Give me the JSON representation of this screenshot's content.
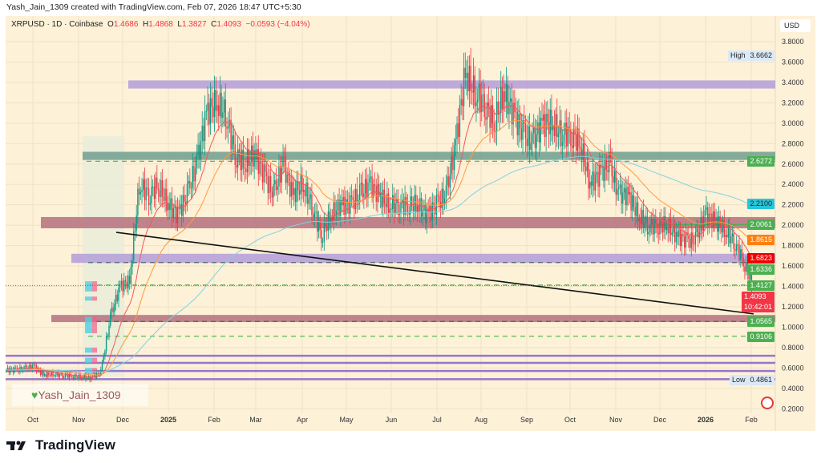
{
  "header": {
    "credit": "Yash_Jain_1309 created with TradingView.com, Feb 07, 2026 18:47 UTC+5:30"
  },
  "legend": {
    "symbol": "XRPUSD · 1D · Coinbase",
    "o_label": "O",
    "o": "1.4686",
    "h_label": "H",
    "h": "1.4868",
    "l_label": "L",
    "l": "1.3827",
    "c_label": "C",
    "c": "1.4093",
    "change": "−0.0593 (−4.04%)"
  },
  "axis": {
    "currency": "USD",
    "ticks": [
      "3.8000",
      "3.6000",
      "3.4000",
      "3.2000",
      "3.0000",
      "2.8000",
      "2.6000",
      "2.4000",
      "2.2000",
      "2.0000",
      "1.8000",
      "1.6000",
      "1.4000",
      "1.2000",
      "1.0000",
      "0.8000",
      "0.6000",
      "0.4000",
      "0.2000"
    ],
    "x_labels": [
      "Oct",
      "Nov",
      "Dec",
      "2025",
      "Feb",
      "Mar",
      "Apr",
      "May",
      "Jun",
      "Jul",
      "Aug",
      "Sep",
      "Oct",
      "Nov",
      "Dec",
      "2026",
      "Feb"
    ]
  },
  "badges": [
    {
      "label": "High",
      "value": "3.6662",
      "price": 3.6662,
      "color": "#dbe9f7",
      "text": "#222"
    },
    {
      "value": "2.6272",
      "price": 2.6272,
      "color": "#4caf50",
      "text": "#fff"
    },
    {
      "value": "2.2100",
      "price": 2.21,
      "color": "#26c6da",
      "text": "#222"
    },
    {
      "value": "2.0061",
      "price": 2.0061,
      "color": "#4caf50",
      "text": "#fff"
    },
    {
      "value": "1.8615",
      "price": 1.8615,
      "color": "#ff7f0e",
      "text": "#fff"
    },
    {
      "value": "1.6823",
      "price": 1.6823,
      "color": "#f00000",
      "text": "#fff"
    },
    {
      "value": "1.6336",
      "price": 1.6336,
      "color": "#4caf50",
      "text": "#fff"
    },
    {
      "value": "1.4127",
      "price": 1.4127,
      "color": "#4caf50",
      "text": "#fff"
    },
    {
      "value": "1.4093",
      "sub": "10:42:01",
      "price": 1.4093,
      "color": "#f23645",
      "text": "#fff"
    },
    {
      "value": "1.0565",
      "price": 1.0565,
      "color": "#4caf50",
      "text": "#fff"
    },
    {
      "value": "0.9106",
      "price": 0.9106,
      "color": "#4caf50",
      "text": "#fff"
    },
    {
      "label": "Low",
      "value": "0.4861",
      "price": 0.4861,
      "color": "#dbe9f7",
      "text": "#222"
    }
  ],
  "colors": {
    "up": "#089981",
    "down": "#f23645",
    "ma_fast": "#f05a5a",
    "ma_mid": "#ff9a3c",
    "ma_slow": "#7fd3e0"
  },
  "chart_data": {
    "type": "candlestick",
    "symbol": "XRPUSD",
    "interval": "1D",
    "weekly_closes": [
      0.58,
      0.59,
      0.62,
      0.53,
      0.54,
      0.53,
      0.52,
      0.51,
      0.5,
      0.56,
      1.1,
      1.4,
      1.45,
      2.4,
      2.3,
      2.4,
      2.2,
      2.1,
      2.3,
      2.6,
      3.1,
      3.2,
      3.1,
      2.7,
      2.6,
      2.7,
      2.5,
      2.3,
      2.6,
      2.3,
      2.4,
      2.2,
      1.9,
      2.1,
      2.2,
      2.2,
      2.3,
      2.4,
      2.3,
      2.2,
      2.2,
      2.2,
      2.2,
      2.1,
      2.2,
      2.3,
      2.8,
      3.5,
      3.3,
      3.2,
      3.0,
      3.3,
      3.1,
      2.9,
      2.8,
      3.0,
      3.0,
      2.9,
      2.9,
      2.8,
      2.4,
      2.5,
      2.6,
      2.3,
      2.3,
      2.1,
      2.0,
      2.0,
      2.0,
      1.9,
      1.85,
      1.85,
      2.1,
      2.05,
      1.95,
      1.85,
      1.65,
      1.41
    ],
    "zones": [
      {
        "low": 3.34,
        "high": 3.42,
        "color": "#b39ddb"
      },
      {
        "low": 2.64,
        "high": 2.72,
        "color": "#6f9f8f"
      },
      {
        "low": 1.97,
        "high": 2.08,
        "color": "#b5707f"
      },
      {
        "low": 1.63,
        "high": 1.72,
        "color": "#b39ddb"
      },
      {
        "low": 1.05,
        "high": 1.12,
        "color": "#b5707f"
      }
    ],
    "support_lines": [
      0.72,
      0.65,
      0.57,
      0.49
    ],
    "trendline": {
      "from": 1.93,
      "to": 1.13
    },
    "ylim": [
      0.1,
      3.95
    ]
  },
  "watermark": "Yash_Jain_1309",
  "brand": "TradingView"
}
